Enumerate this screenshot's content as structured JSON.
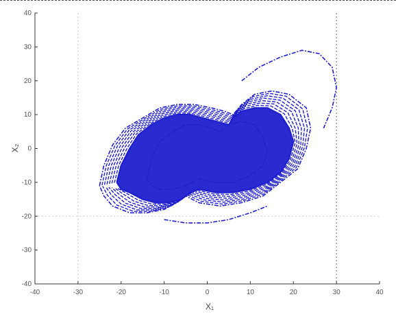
{
  "chart_data": {
    "type": "line",
    "title": "",
    "xlabel": "X₁",
    "ylabel": "X₂",
    "xlim": [
      -40,
      40
    ],
    "ylim": [
      -40,
      40
    ],
    "x_ticks": [
      -40,
      -30,
      -20,
      -10,
      0,
      10,
      20,
      30,
      40
    ],
    "y_ticks": [
      -40,
      -30,
      -20,
      -10,
      0,
      10,
      20,
      30,
      40
    ],
    "x_tick_labels": [
      "-40",
      "-30",
      "-20",
      "-10",
      "0",
      "10",
      "20",
      "30",
      "40"
    ],
    "y_tick_labels": [
      "-40",
      "-30",
      "-20",
      "-10",
      "0",
      "10",
      "20",
      "30",
      "40"
    ],
    "grid": false,
    "reference_lines": {
      "x": [
        -30,
        30
      ],
      "y": [
        -20
      ]
    },
    "series_color": "#1f1fcf",
    "series": [
      {
        "x": [
          -21,
          -20,
          -18,
          -16,
          -13,
          -10,
          -7,
          -4,
          -1,
          2,
          5,
          6,
          8,
          11,
          14,
          17,
          19,
          20,
          19,
          17,
          14,
          10,
          6,
          2,
          -2,
          -4,
          -6,
          -9,
          -12,
          -15,
          -18,
          -20,
          -21
        ],
        "y": [
          -10,
          -5,
          0,
          4,
          7,
          9,
          10,
          10,
          9,
          8,
          7,
          9,
          11,
          12,
          12,
          10,
          6,
          2,
          -3,
          -7,
          -10,
          -12,
          -13,
          -13,
          -12,
          -13,
          -15,
          -16,
          -16,
          -15,
          -13,
          -12,
          -10
        ]
      },
      {
        "x": [
          -25,
          -24,
          -22,
          -19,
          -15,
          -11,
          -7,
          -3,
          1,
          4,
          6,
          8,
          11,
          15,
          19,
          23,
          24,
          23,
          21,
          17,
          13,
          8,
          3,
          -2,
          -5,
          -7,
          -10,
          -14,
          -18,
          -22,
          -24,
          -25
        ],
        "y": [
          -11,
          -5,
          1,
          6,
          9,
          12,
          13,
          13,
          12,
          11,
          10,
          13,
          16,
          17,
          16,
          12,
          6,
          0,
          -6,
          -10,
          -14,
          -16,
          -17,
          -16,
          -14,
          -16,
          -18,
          -19,
          -19,
          -17,
          -14,
          -11
        ]
      },
      {
        "x": [
          -14,
          -13,
          -11,
          -8,
          -5,
          -2,
          1,
          3,
          5,
          8,
          11,
          13,
          14,
          13,
          10,
          6,
          2,
          -2,
          -5,
          -8,
          -11,
          -13,
          -14
        ],
        "y": [
          -9,
          -3,
          2,
          5,
          7,
          7,
          6,
          5,
          7,
          8,
          7,
          3,
          -1,
          -5,
          -8,
          -10,
          -10,
          -9,
          -11,
          -12,
          -12,
          -11,
          -9
        ]
      },
      {
        "x": [
          8,
          12,
          17,
          22,
          26,
          29,
          30,
          29,
          27
        ],
        "y": [
          20,
          24,
          27,
          29,
          28,
          24,
          18,
          12,
          6
        ]
      },
      {
        "x": [
          -10,
          -5,
          0,
          5,
          10,
          14
        ],
        "y": [
          -21,
          -22,
          -22,
          -21,
          -19,
          -17
        ]
      }
    ]
  }
}
